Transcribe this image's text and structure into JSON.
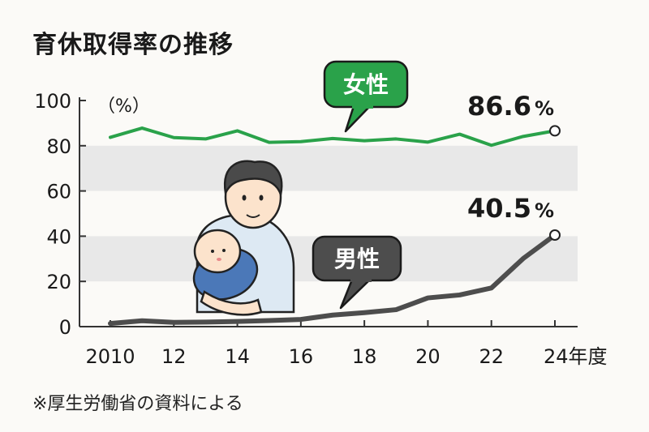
{
  "title": "育休取得率の推移",
  "source": "※厚生労働省の資料による",
  "chart_data": {
    "type": "line",
    "title": "育休取得率の推移",
    "ylabel": "（%）",
    "ylim": [
      0,
      100
    ],
    "yticks": [
      0,
      20,
      40,
      60,
      80,
      100
    ],
    "xticks": [
      {
        "x": 2010,
        "label": "2010"
      },
      {
        "x": 2012,
        "label": "12"
      },
      {
        "x": 2014,
        "label": "14"
      },
      {
        "x": 2016,
        "label": "16"
      },
      {
        "x": 2018,
        "label": "18"
      },
      {
        "x": 2020,
        "label": "20"
      },
      {
        "x": 2022,
        "label": "22"
      },
      {
        "x": 2024,
        "label": "24年度"
      }
    ],
    "x": [
      2010,
      2011,
      2012,
      2013,
      2014,
      2015,
      2016,
      2017,
      2018,
      2019,
      2020,
      2021,
      2022,
      2023,
      2024
    ],
    "series": [
      {
        "name": "女性",
        "color": "#2aa24a",
        "values": [
          83.7,
          87.8,
          83.6,
          83.0,
          86.6,
          81.5,
          81.8,
          83.2,
          82.2,
          83.0,
          81.6,
          85.1,
          80.2,
          84.1,
          86.6
        ],
        "end_label": "86.6",
        "end_unit": "%"
      },
      {
        "name": "男性",
        "color": "#4d4d4d",
        "values": [
          1.4,
          2.6,
          1.9,
          2.0,
          2.3,
          2.7,
          3.2,
          5.1,
          6.2,
          7.5,
          12.7,
          14.0,
          17.1,
          30.1,
          40.5
        ],
        "end_label": "40.5",
        "end_unit": "%"
      }
    ],
    "grid_bands": [
      [
        20,
        40
      ],
      [
        60,
        80
      ]
    ]
  }
}
